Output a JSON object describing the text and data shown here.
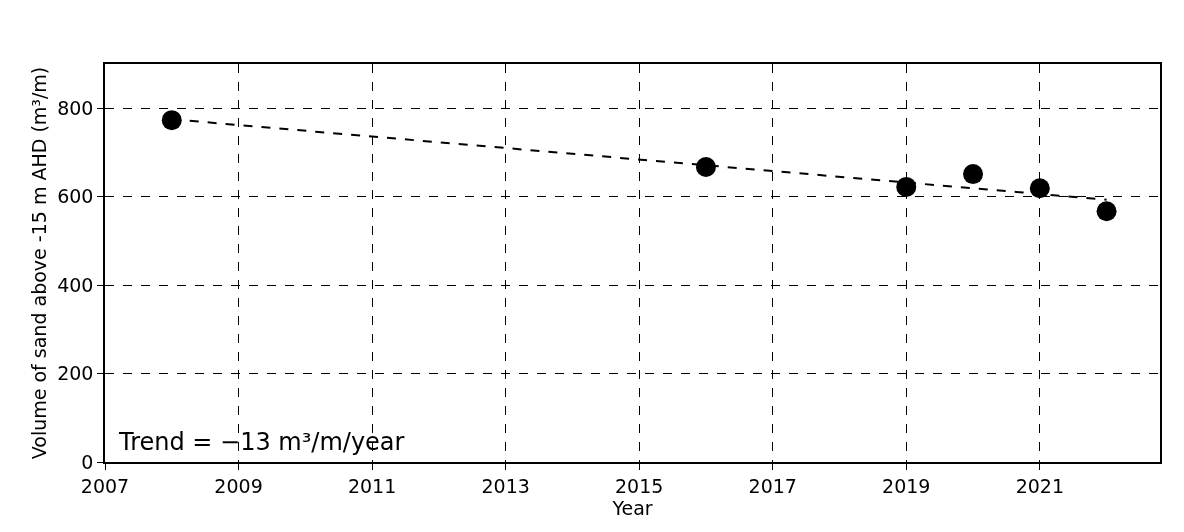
{
  "chart_data": {
    "type": "scatter",
    "xlabel": "Year",
    "ylabel": "Volume of sand above -15 m AHD (m³/m)",
    "x": [
      2008,
      2016,
      2019,
      2020,
      2021,
      2022
    ],
    "series": [
      {
        "color": "#000000",
        "marker": "circle",
        "values": [
          773,
          667,
          622,
          651,
          619,
          567
        ]
      },
      {
        "type": "line",
        "color": "#000000",
        "line_style": "dashed",
        "marker": "none",
        "x": [
          2008,
          2022
        ],
        "values": [
          775,
          593
        ]
      }
    ],
    "xlim": [
      2007,
      2022.8
    ],
    "xticks": [
      2007,
      2009,
      2011,
      2013,
      2015,
      2017,
      2019,
      2021
    ],
    "ylim": [
      0,
      900
    ],
    "yticks": [
      0,
      200,
      400,
      600,
      800
    ],
    "grid": true,
    "annotations": [
      "Trend = −13 m³/m/year"
    ]
  }
}
